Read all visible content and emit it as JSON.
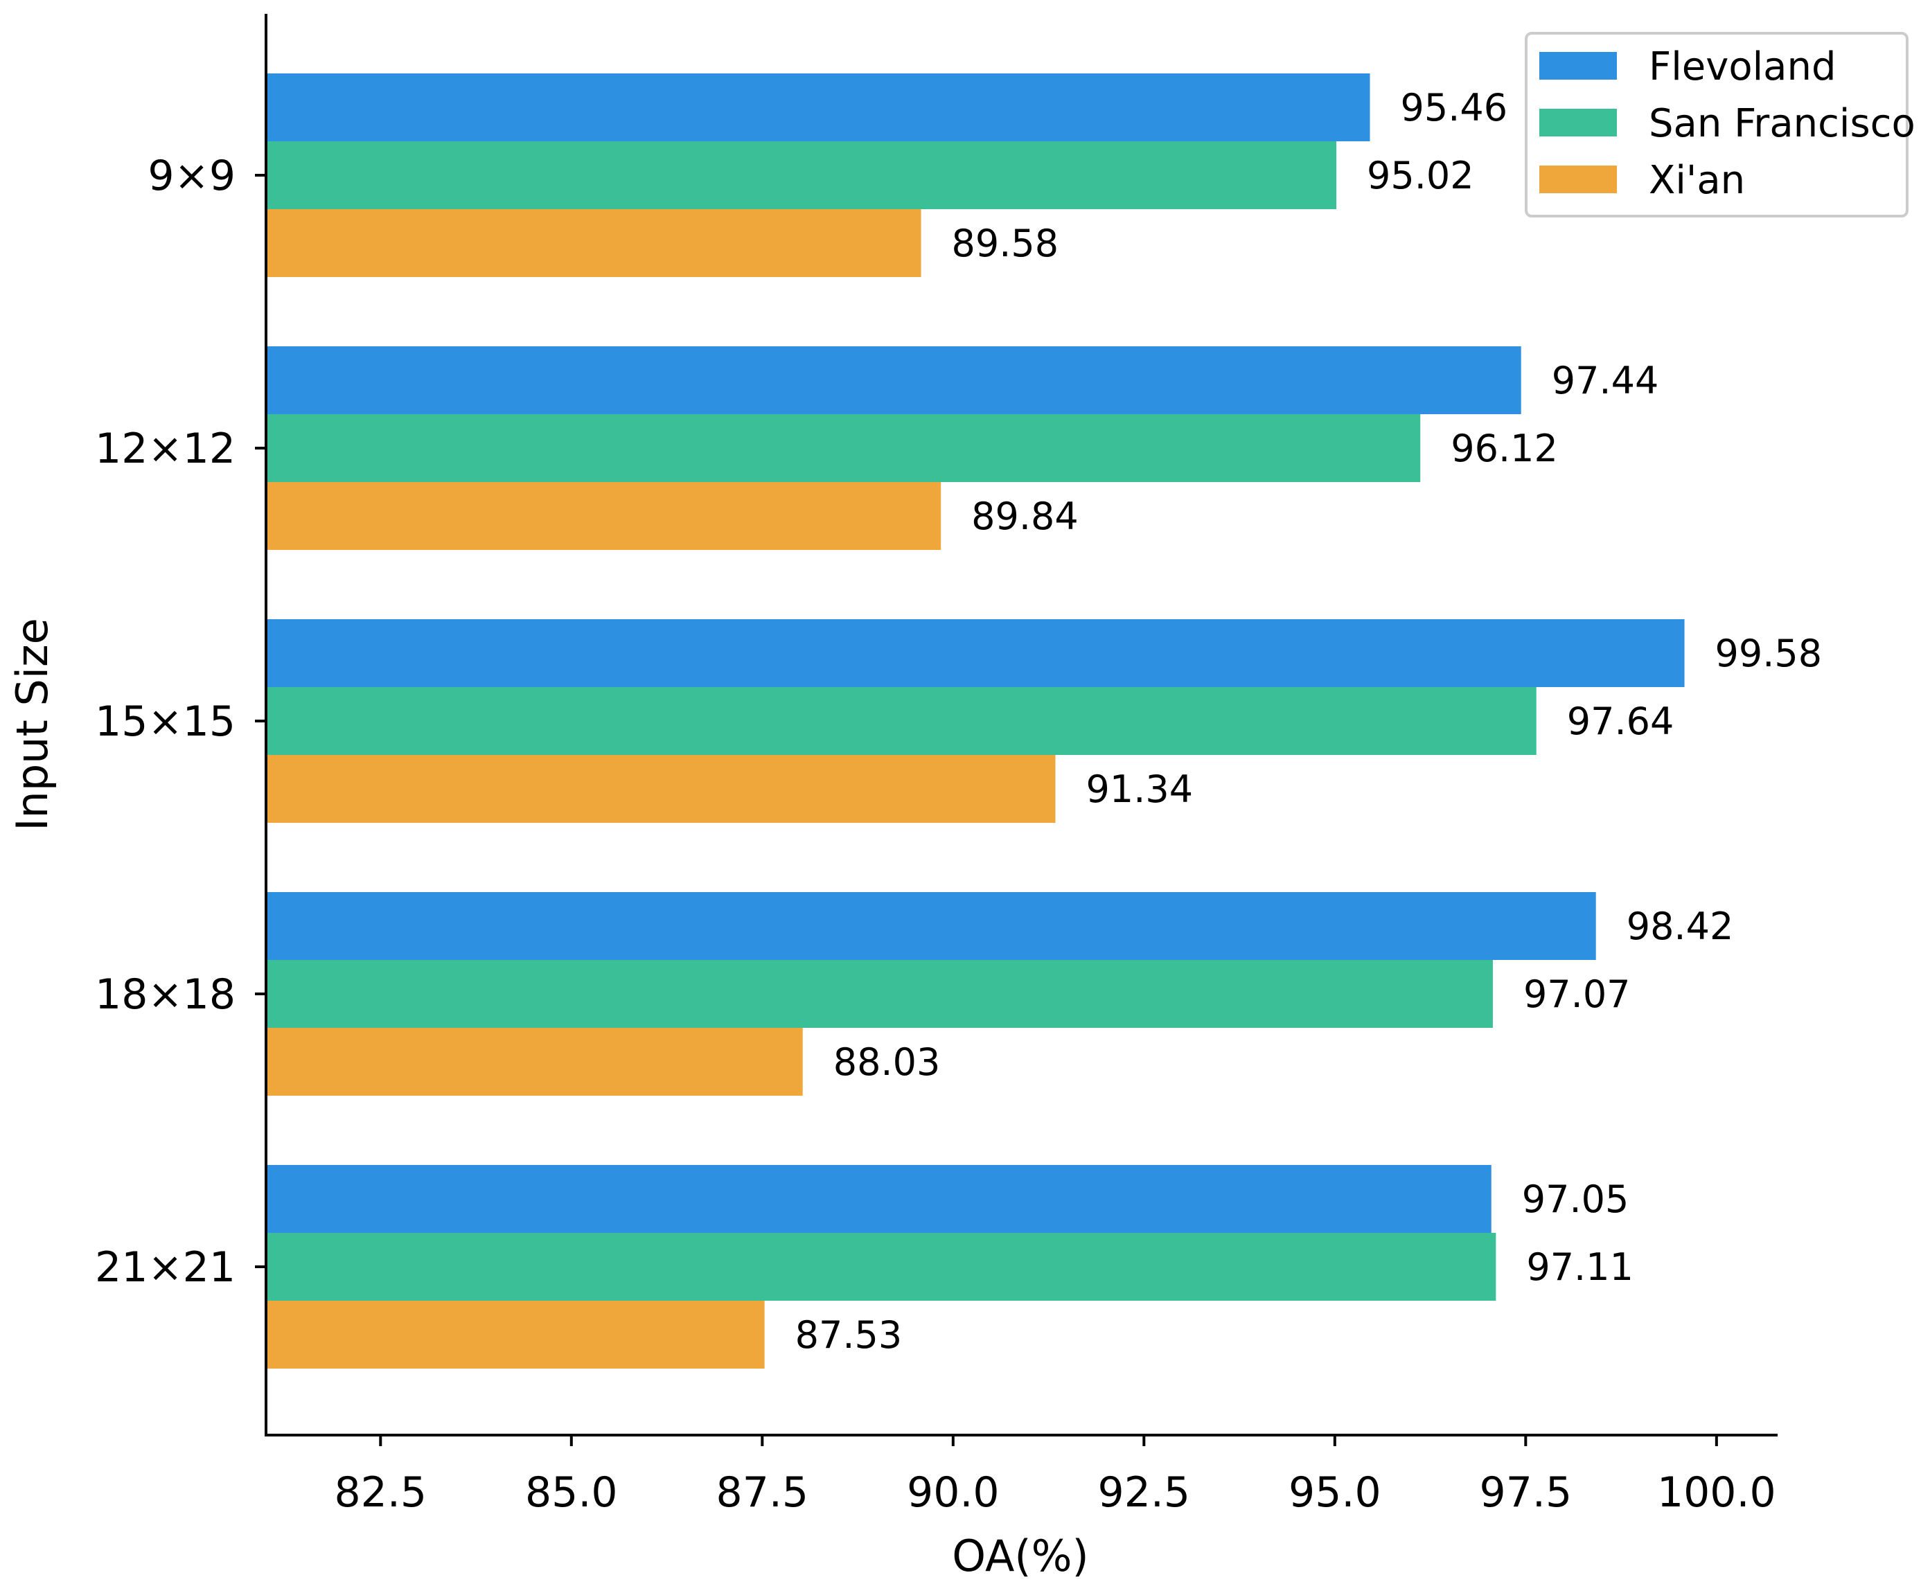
{
  "chart_data": {
    "type": "bar",
    "orientation": "horizontal",
    "title": "",
    "xlabel": "OA(%)",
    "ylabel": "Input Size",
    "xlim": [
      81.0,
      100.8
    ],
    "xticks": [
      "82.5",
      "85.0",
      "87.5",
      "90.0",
      "92.5",
      "95.0",
      "97.5",
      "100.0"
    ],
    "categories": [
      "9×9",
      "12×12",
      "15×15",
      "18×18",
      "21×21"
    ],
    "series": [
      {
        "name": "Flevoland",
        "color": "#2e90e0",
        "values": [
          95.46,
          97.44,
          99.58,
          98.42,
          97.05
        ],
        "labels": [
          "95.46",
          "97.44",
          "99.58",
          "98.42",
          "97.05"
        ]
      },
      {
        "name": "San Francisco",
        "color": "#3bbf97",
        "values": [
          95.02,
          96.12,
          97.64,
          97.07,
          97.11
        ],
        "labels": [
          "95.02",
          "96.12",
          "97.64",
          "97.07",
          "97.11"
        ]
      },
      {
        "name": "Xi'an",
        "color": "#efa73b",
        "values": [
          89.58,
          89.84,
          91.34,
          88.03,
          87.53
        ],
        "labels": [
          "89.58",
          "89.84",
          "91.34",
          "88.03",
          "87.53"
        ]
      }
    ],
    "legend": "top-right",
    "grid": false
  }
}
